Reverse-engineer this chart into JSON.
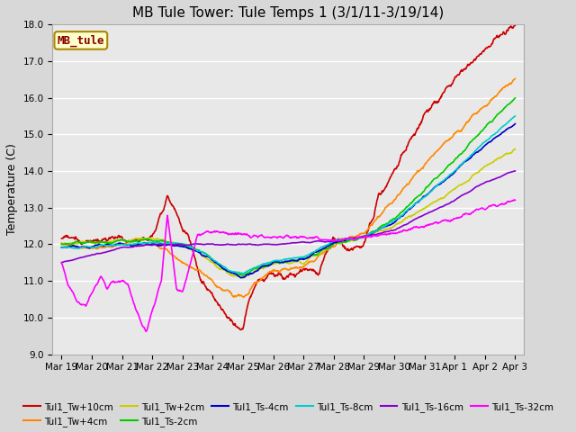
{
  "title": "MB Tule Tower: Tule Temps 1 (3/1/11-3/19/14)",
  "ylabel": "Temperature (C)",
  "ylim": [
    9.0,
    18.0
  ],
  "yticks": [
    9.0,
    10.0,
    11.0,
    12.0,
    13.0,
    14.0,
    15.0,
    16.0,
    17.0,
    18.0
  ],
  "fig_facecolor": "#d8d8d8",
  "ax_facecolor": "#e8e8e8",
  "grid_color": "#ffffff",
  "series": [
    {
      "label": "Tul1_Tw+10cm",
      "color": "#cc0000",
      "lw": 1.2
    },
    {
      "label": "Tul1_Tw+4cm",
      "color": "#ff8800",
      "lw": 1.2
    },
    {
      "label": "Tul1_Tw+2cm",
      "color": "#cccc00",
      "lw": 1.2
    },
    {
      "label": "Tul1_Ts-2cm",
      "color": "#00cc00",
      "lw": 1.2
    },
    {
      "label": "Tul1_Ts-4cm",
      "color": "#0000cc",
      "lw": 1.2
    },
    {
      "label": "Tul1_Ts-8cm",
      "color": "#00cccc",
      "lw": 1.2
    },
    {
      "label": "Tul1_Ts-16cm",
      "color": "#8800cc",
      "lw": 1.2
    },
    {
      "label": "Tul1_Ts-32cm",
      "color": "#ff00ff",
      "lw": 1.2
    }
  ],
  "xtick_labels": [
    "Mar 19",
    "Mar 20",
    "Mar 21",
    "Mar 22",
    "Mar 23",
    "Mar 24",
    "Mar 25",
    "Mar 26",
    "Mar 27",
    "Mar 28",
    "Mar 29",
    "Mar 30",
    "Mar 31",
    "Apr 1",
    "Apr 2",
    "Apr 3"
  ],
  "legend_box": {
    "label": "MB_tule",
    "facecolor": "#ffffcc",
    "edgecolor": "#aa8800",
    "textcolor": "#880000"
  },
  "title_fontsize": 11,
  "axis_label_fontsize": 9,
  "tick_fontsize": 7.5,
  "legend_fontsize": 7.5
}
